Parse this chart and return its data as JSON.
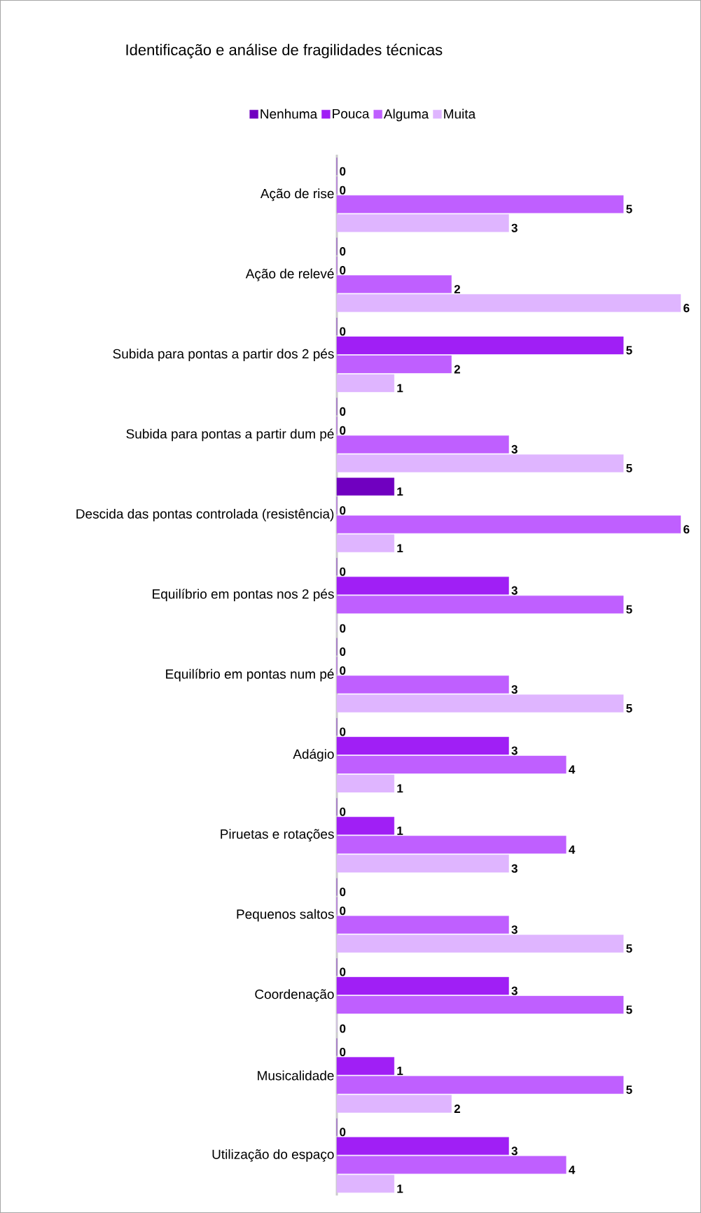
{
  "chart_data": {
    "type": "bar",
    "orientation": "horizontal",
    "title": "Identificação e análise de fragilidades técnicas",
    "categories": [
      "Ação de rise",
      "Ação de relevé",
      "Subida para pontas a partir dos 2 pés",
      "Subida para pontas a partir dum pé",
      "Descida das pontas controlada (resistência)",
      "Equilíbrio em pontas nos 2 pés",
      "Equilíbrio em pontas num pé",
      "Adágio",
      "Piruetas e rotações",
      "Pequenos saltos",
      "Coordenação",
      "Musicalidade",
      "Utilização do espaço"
    ],
    "series": [
      {
        "name": "Nenhuma",
        "color": "#7000c0",
        "values": [
          0,
          0,
          0,
          0,
          1,
          0,
          0,
          0,
          0,
          0,
          0,
          0,
          0
        ]
      },
      {
        "name": "Pouca",
        "color": "#a01ff5",
        "values": [
          0,
          0,
          5,
          0,
          0,
          3,
          0,
          3,
          1,
          0,
          3,
          1,
          3
        ]
      },
      {
        "name": "Alguma",
        "color": "#bf5fff",
        "values": [
          5,
          2,
          2,
          3,
          6,
          5,
          3,
          4,
          4,
          3,
          5,
          5,
          4
        ]
      },
      {
        "name": "Muita",
        "color": "#dfb5ff",
        "values": [
          3,
          6,
          1,
          5,
          1,
          0,
          5,
          1,
          3,
          5,
          0,
          2,
          1
        ]
      }
    ],
    "xlim": [
      0,
      6
    ],
    "data_labels": true,
    "legend": "top"
  }
}
